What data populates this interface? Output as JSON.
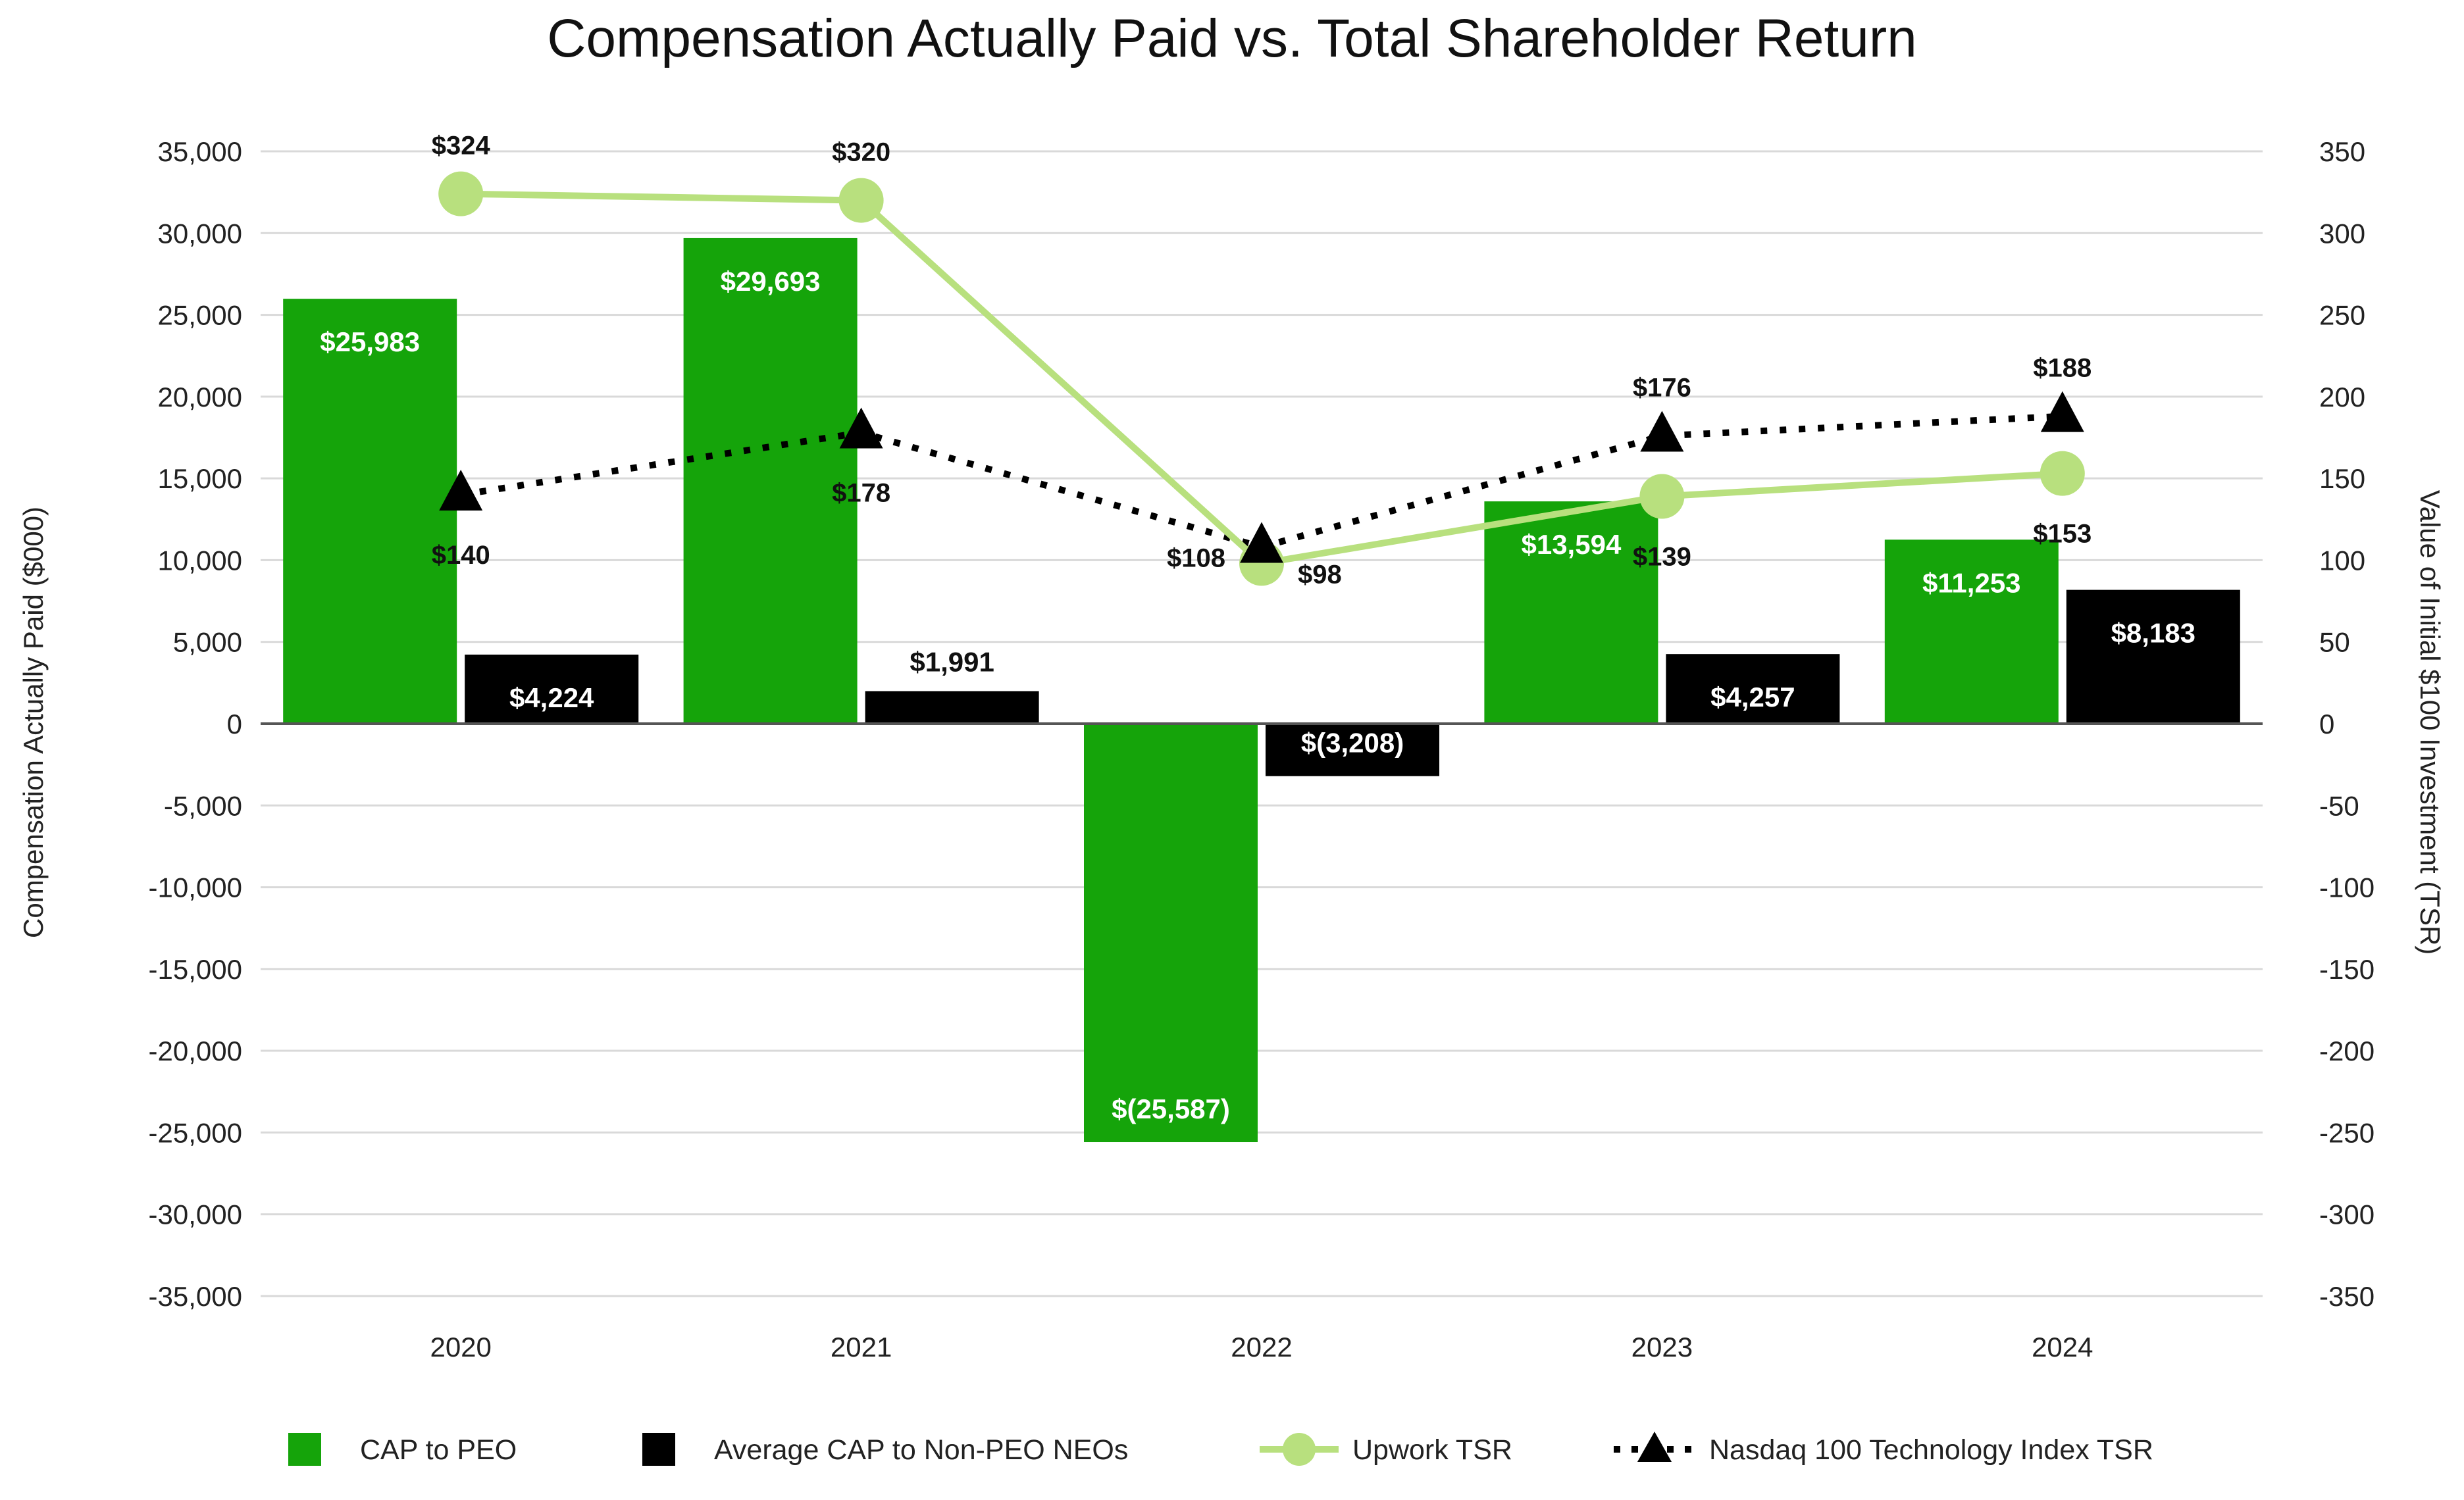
{
  "chart_data": {
    "type": "bar",
    "title": "Compensation Actually Paid vs. Total Shareholder Return",
    "categories": [
      "2020",
      "2021",
      "2022",
      "2023",
      "2024"
    ],
    "y_left": {
      "label": "Compensation Actually Paid ($000)",
      "range": [
        -35000,
        35000
      ],
      "ticks": [
        "35,000",
        "30,000",
        "25,000",
        "20,000",
        "15,000",
        "10,000",
        "5,000",
        "0",
        "-5,000",
        "-10,000",
        "-15,000",
        "-20,000",
        "-25,000",
        "-30,000",
        "-35,000"
      ]
    },
    "y_right": {
      "label": "Value of Initial $100 Investment (TSR)",
      "range": [
        -350,
        350
      ],
      "ticks": [
        "350",
        "300",
        "250",
        "200",
        "150",
        "100",
        "50",
        "0",
        "-50",
        "-100",
        "-150",
        "-200",
        "-250",
        "-300",
        "-350"
      ]
    },
    "grid": true,
    "legend_position": "bottom",
    "series": [
      {
        "name": "CAP to PEO",
        "kind": "bar",
        "axis": "left",
        "color": "#15a40a",
        "values": [
          25983,
          29693,
          -25587,
          13594,
          11253
        ],
        "labels": [
          "$25,983",
          "$29,693",
          "$(25,587)",
          "$13,594",
          "$11,253"
        ]
      },
      {
        "name": "Average CAP to Non-PEO NEOs",
        "kind": "bar",
        "axis": "left",
        "color": "#000000",
        "values": [
          4224,
          1991,
          -3208,
          4257,
          8183
        ],
        "labels": [
          "$4,224",
          "$1,991",
          "$(3,208)",
          "$4,257",
          "$8,183"
        ]
      },
      {
        "name": "Upwork TSR",
        "kind": "line",
        "axis": "right",
        "color": "#b8e07e",
        "values": [
          324,
          320,
          98,
          139,
          153
        ],
        "labels": [
          "$324",
          "$320",
          "$98",
          "$139",
          "$153"
        ]
      },
      {
        "name": "Nasdaq 100 Technology Index TSR",
        "kind": "dotted-line",
        "axis": "right",
        "color": "#000000",
        "values": [
          140,
          178,
          108,
          176,
          188
        ],
        "labels": [
          "$140",
          "$178",
          "$108",
          "$176",
          "$188"
        ]
      }
    ]
  },
  "colors": {
    "bar_peo": "#15a40a",
    "bar_neo": "#000000",
    "line_upwork": "#b8e07e",
    "line_nasdaq": "#000000",
    "grid": "#d9d9d9",
    "axis": "#555555"
  }
}
